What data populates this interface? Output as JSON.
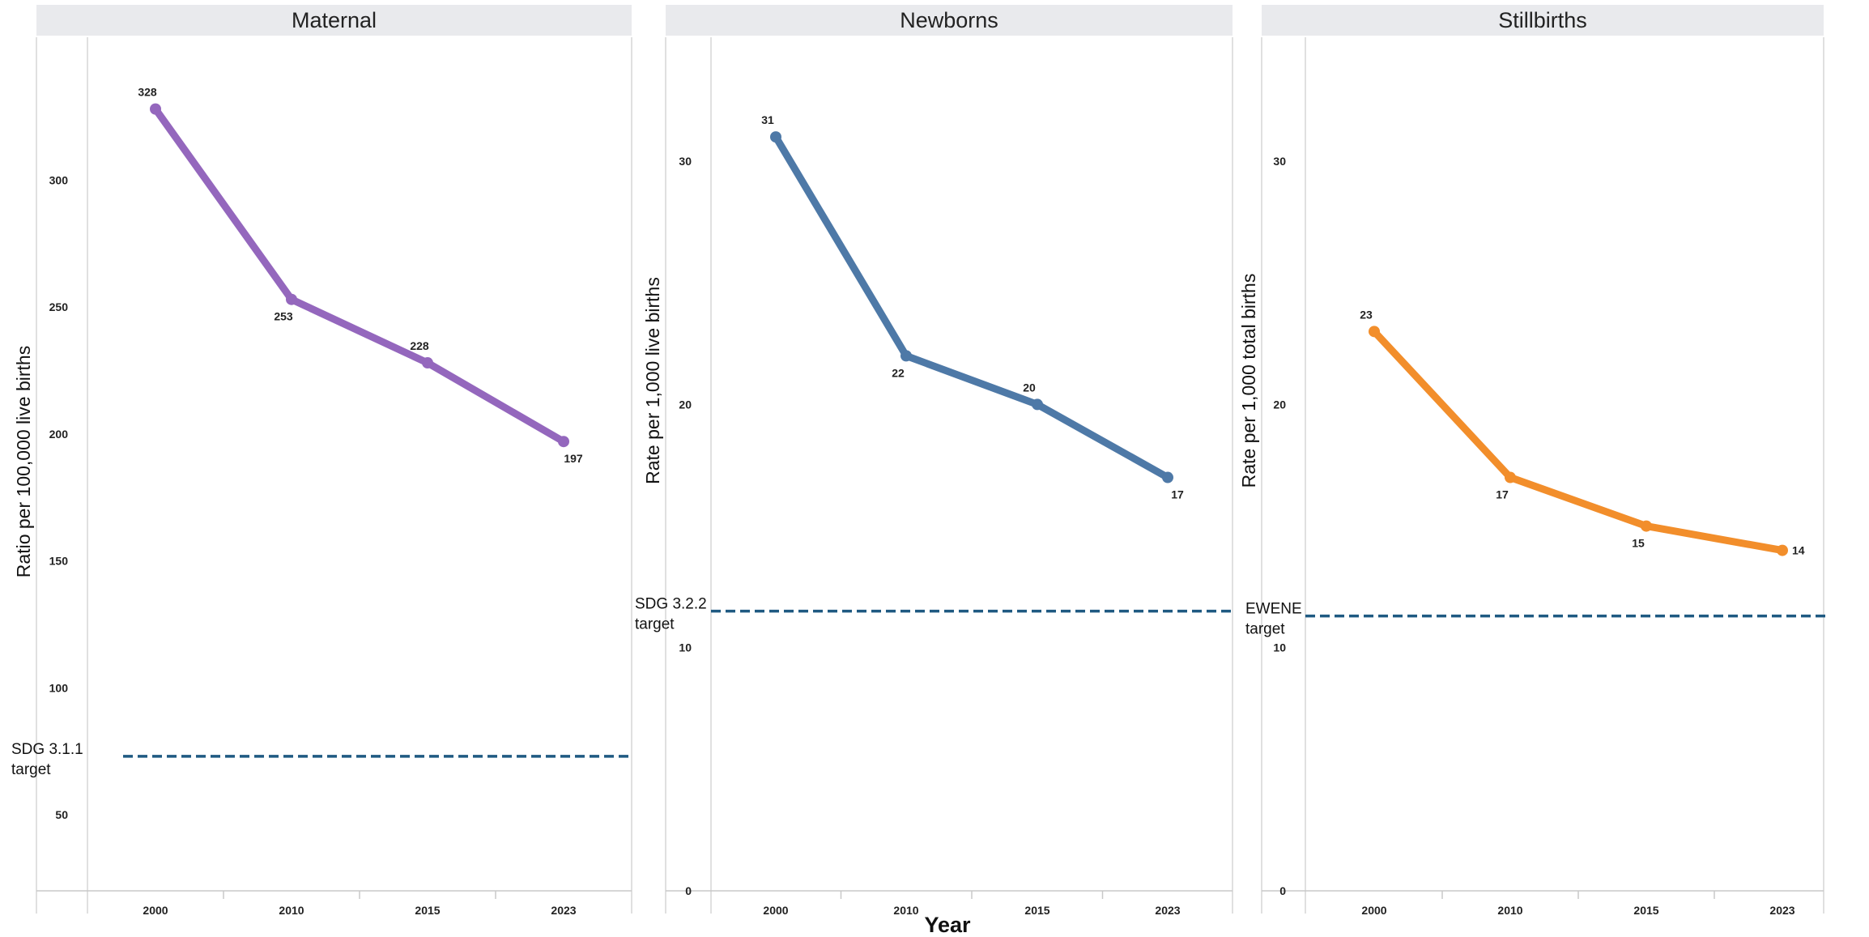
{
  "chart_data": [
    {
      "type": "line",
      "title": "Maternal",
      "ylabel": "Ratio per 100,000 live births",
      "categories": [
        "2000",
        "2010",
        "2015",
        "2023"
      ],
      "series": [
        {
          "values": [
            328,
            253,
            228,
            197
          ],
          "color": "#9467bd"
        }
      ],
      "yticks": [
        50,
        100,
        150,
        200,
        250,
        300
      ],
      "ylim": [
        20,
        355
      ],
      "reference_line": {
        "value": 73,
        "label_line1": "SDG 3.1.1",
        "label_line2": "target",
        "color": "#1f5a82",
        "style": "dashed"
      },
      "label_positions": [
        "above",
        "below",
        "above",
        "below"
      ],
      "grid": false
    },
    {
      "type": "line",
      "title": "Newborns",
      "ylabel": "Rate per 1,000 live births",
      "categories": [
        "2000",
        "2010",
        "2015",
        "2023"
      ],
      "series": [
        {
          "values": [
            31,
            22,
            20,
            17
          ],
          "color": "#4e79a7"
        }
      ],
      "yticks": [
        0,
        10,
        20,
        30
      ],
      "ylim": [
        0,
        34.9
      ],
      "reference_line": {
        "value": 11.5,
        "label_line1": "SDG 3.2.2",
        "label_line2": "target",
        "color": "#1f5a82",
        "style": "dashed"
      },
      "label_positions": [
        "above",
        "below",
        "above",
        "below"
      ],
      "grid": false
    },
    {
      "type": "line",
      "title": "Stillbirths",
      "ylabel": "Rate per 1,000 total births",
      "categories": [
        "2000",
        "2010",
        "2015",
        "2023"
      ],
      "series": [
        {
          "values": [
            23,
            17,
            15,
            14
          ],
          "color": "#f28e2b"
        }
      ],
      "yticks": [
        0,
        10,
        20,
        30
      ],
      "ylim": [
        0,
        34.9
      ],
      "reference_line": {
        "value": 11.3,
        "label_line1": "EWENE",
        "label_line2": "target",
        "color": "#1f5a82",
        "style": "dashed"
      },
      "label_positions": [
        "above",
        "below",
        "below",
        "right"
      ],
      "grid": false
    }
  ],
  "shared_xlabel": "Year"
}
